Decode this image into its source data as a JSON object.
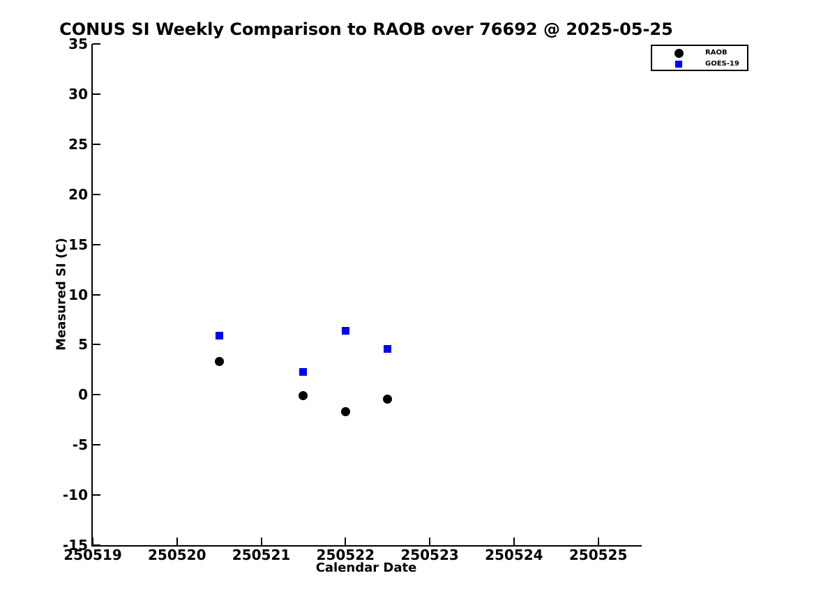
{
  "chart_data": {
    "type": "scatter",
    "title": "CONUS SI Weekly Comparison to RAOB over 76692 @ 2025-05-25",
    "xlabel": "Calendar Date",
    "ylabel": "Measured SI (C)",
    "xlim": [
      250519,
      250525.5
    ],
    "ylim": [
      -15,
      35
    ],
    "xticks": [
      250519,
      250520,
      250521,
      250522,
      250523,
      250524,
      250525
    ],
    "yticks": [
      35,
      30,
      25,
      20,
      15,
      10,
      5,
      0,
      -5,
      -10,
      -15
    ],
    "grid": false,
    "legend_position": "top-right",
    "series": [
      {
        "name": "RAOB",
        "marker": "circle",
        "color": "#000000",
        "points": [
          [
            250520.5,
            3.3
          ],
          [
            250521.5,
            -0.1
          ],
          [
            250522.0,
            -1.7
          ],
          [
            250522.5,
            -0.4
          ]
        ]
      },
      {
        "name": "GOES-19",
        "marker": "square",
        "color": "#0000ff",
        "points": [
          [
            250520.5,
            5.9
          ],
          [
            250521.5,
            2.3
          ],
          [
            250522.0,
            6.4
          ],
          [
            250522.5,
            4.6
          ]
        ]
      }
    ]
  }
}
